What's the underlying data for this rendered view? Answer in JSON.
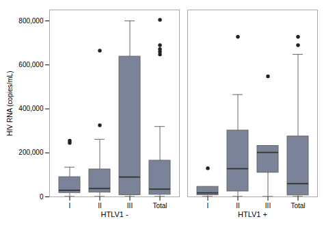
{
  "chart_data": {
    "type": "box",
    "ylabel": "HIV RNA (copies/mL)",
    "categories": [
      "I",
      "II",
      "III",
      "Total",
      "I",
      "II",
      "III",
      "Total"
    ],
    "groups": [
      "HTLV1 -",
      "HTLV1 -",
      "HTLV1 -",
      "HTLV1 -",
      "HTLV1 +",
      "HTLV1 +",
      "HTLV1 +",
      "HTLV1 +"
    ],
    "ylim": [
      0,
      850000
    ],
    "yticks": [
      0,
      {
        "value": 200000,
        "label": "200,000"
      },
      {
        "value": 400000,
        "label": "400,000"
      },
      {
        "value": 600000,
        "label": "600,000"
      },
      {
        "value": 800000,
        "label": "800,000"
      }
    ],
    "color": "#7a8397",
    "line_color": "#666666",
    "median_color": "#333333",
    "flier_color": "#222222",
    "boxes": [
      {
        "q1": 18000,
        "median": 30000,
        "q3": 90000,
        "whislo": 2000,
        "whishi": 135000,
        "fliers": [
          245000,
          255000
        ]
      },
      {
        "q1": 20000,
        "median": 38000,
        "q3": 125000,
        "whislo": 2000,
        "whishi": 262000,
        "fliers": [
          325000,
          665000
        ]
      },
      {
        "q1": 8000,
        "median": 90000,
        "q3": 638000,
        "whislo": 2000,
        "whishi": 800000,
        "fliers": []
      },
      {
        "q1": 10000,
        "median": 35000,
        "q3": 165000,
        "whislo": 2000,
        "whishi": 320000,
        "fliers": [
          648000,
          660000,
          672000,
          690000,
          805000
        ]
      },
      {
        "q1": 8000,
        "median": 18000,
        "q3": 46000,
        "whislo": 2000,
        "whishi": 46000,
        "fliers": [
          130000
        ]
      },
      {
        "q1": 25000,
        "median": 128000,
        "q3": 302000,
        "whislo": 2000,
        "whishi": 465000,
        "fliers": [
          728000
        ]
      },
      {
        "q1": 110000,
        "median": 202000,
        "q3": 232000,
        "whislo": 2000,
        "whishi": 232000,
        "fliers": [
          548000
        ]
      },
      {
        "q1": 7000,
        "median": 60000,
        "q3": 275000,
        "whislo": 2000,
        "whishi": 648000,
        "fliers": [
          690000,
          728000
        ]
      }
    ]
  }
}
